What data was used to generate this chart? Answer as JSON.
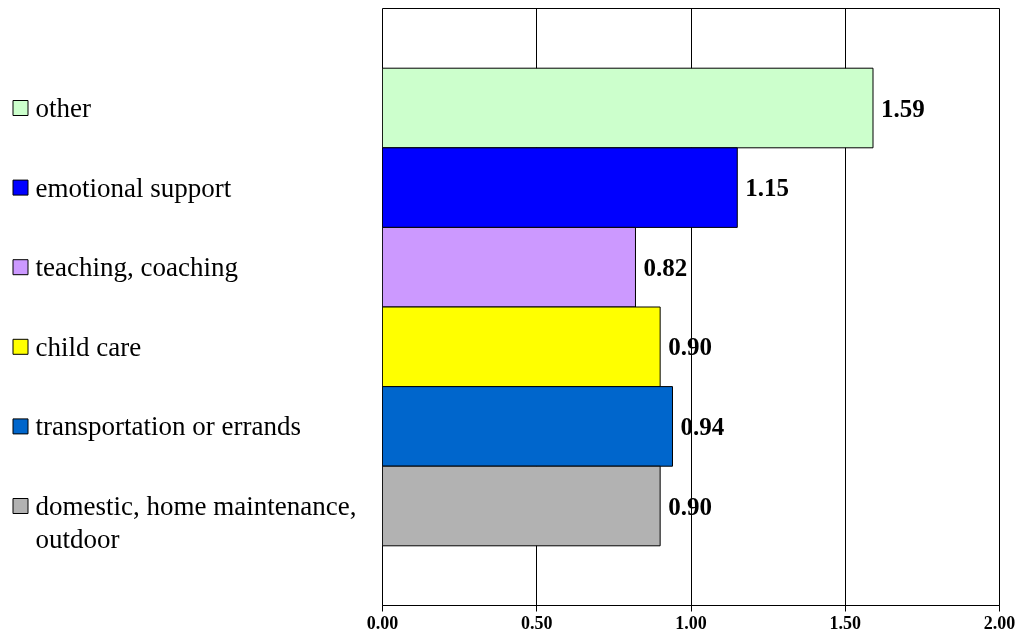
{
  "chart_data": {
    "type": "bar",
    "orientation": "horizontal",
    "categories": [
      null
    ],
    "series": [
      {
        "name": "other",
        "color": "#ccffcc",
        "values": [
          1.59
        ],
        "value_labels": [
          "1.59"
        ]
      },
      {
        "name": "emotional support",
        "color": "#0000ff",
        "values": [
          1.15
        ],
        "value_labels": [
          "1.15"
        ]
      },
      {
        "name": "teaching, coaching",
        "color": "#cc99ff",
        "values": [
          0.82
        ],
        "value_labels": [
          "0.82"
        ]
      },
      {
        "name": "child care",
        "color": "#ffff00",
        "values": [
          0.9
        ],
        "value_labels": [
          "0.90"
        ]
      },
      {
        "name": "transportation or errands",
        "color": "#0066cc",
        "values": [
          0.94
        ],
        "value_labels": [
          "0.94"
        ]
      },
      {
        "name": "domestic, home maintenance, outdoor",
        "color": "#b2b2b2",
        "values": [
          0.9
        ],
        "value_labels": [
          "0.90"
        ]
      }
    ],
    "xlim": [
      0,
      2
    ],
    "xticks": [
      {
        "value": 0,
        "label": "0.00"
      },
      {
        "value": 0.5,
        "label": "0.50"
      },
      {
        "value": 1,
        "label": "1.00"
      },
      {
        "value": 1.5,
        "label": "1.50"
      },
      {
        "value": 2,
        "label": "2.00"
      }
    ],
    "grid": "x",
    "legend": "left"
  }
}
